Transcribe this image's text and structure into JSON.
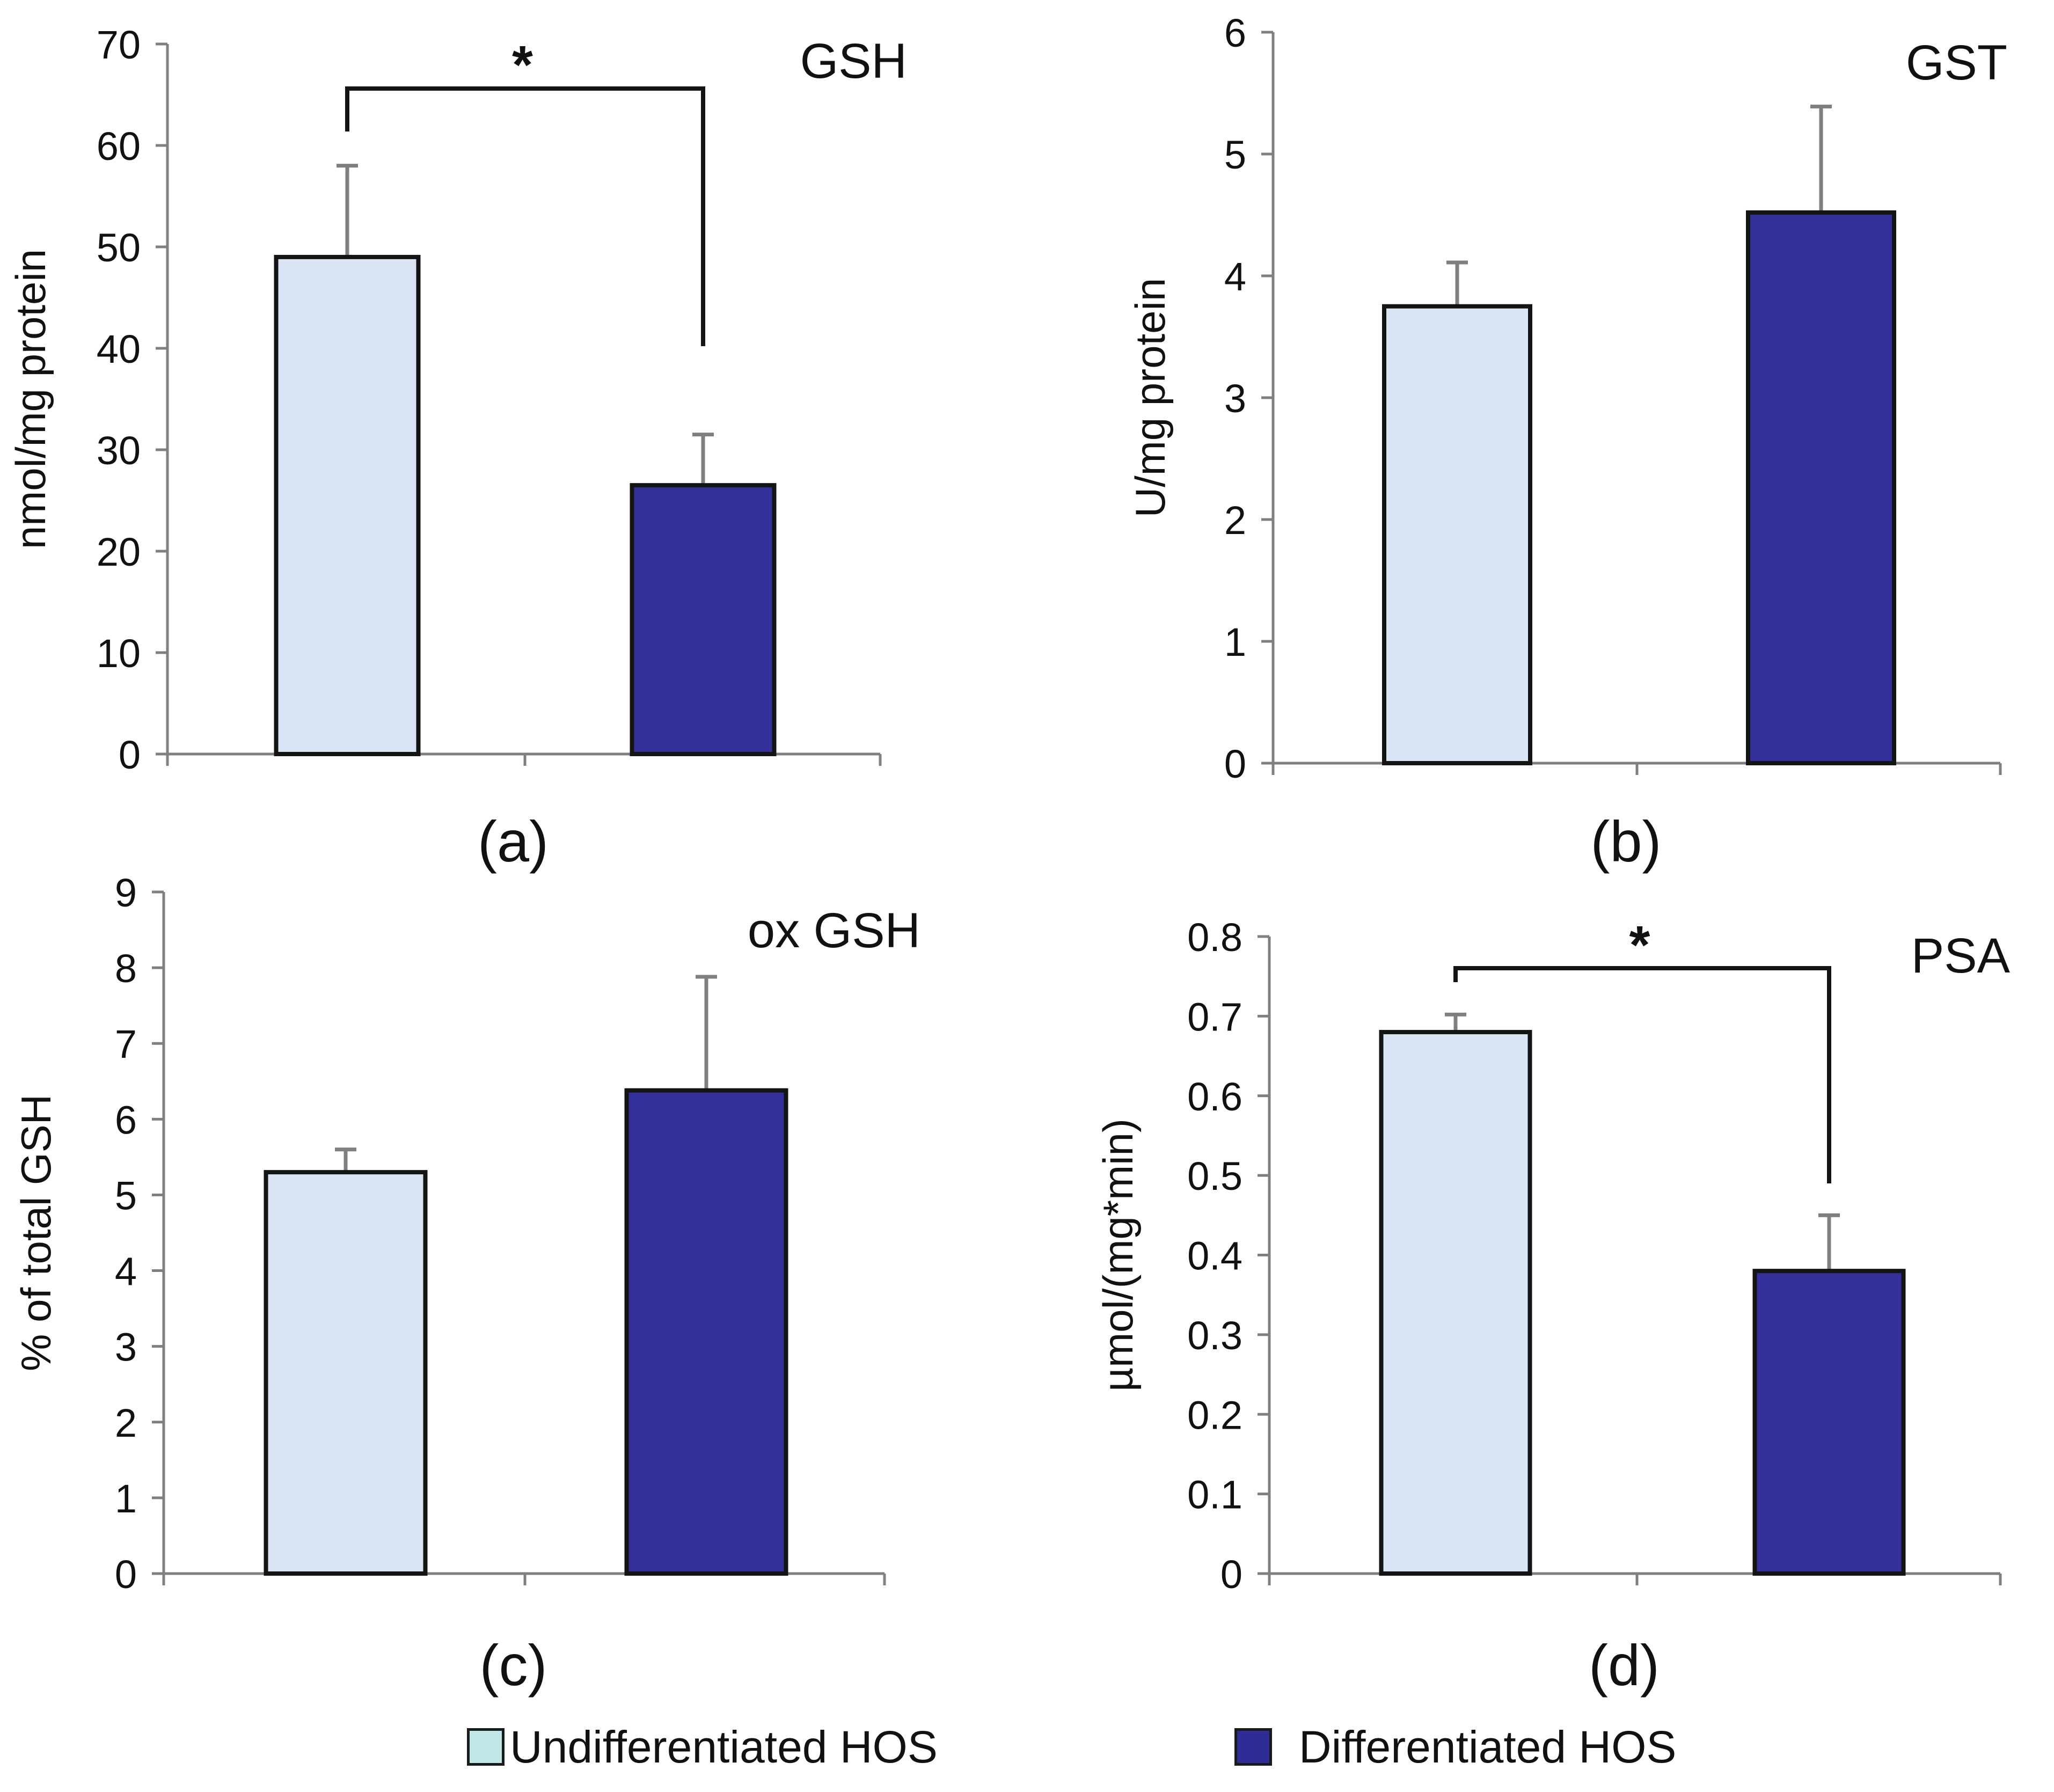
{
  "colors": {
    "undiff_bar": "#d9e4f4",
    "diff_bar": "#33309a",
    "legend_undiff": "#bfe7ea",
    "legend_diff": "#2e2d95",
    "axis": "#7f7f7f",
    "outline": "#141414"
  },
  "legend": {
    "items": [
      {
        "label": "Undifferentiated HOS",
        "color": "#bfe7ea"
      },
      {
        "label": "Differentiated HOS",
        "color": "#2e2d95"
      }
    ]
  },
  "chart_data": [
    {
      "id": "a",
      "type": "bar",
      "panel_label": "(a)",
      "title": "GSH",
      "ylabel": "nmol/mg protein",
      "ylim": [
        0,
        70
      ],
      "yticks": [
        "0",
        "10",
        "20",
        "30",
        "40",
        "50",
        "60",
        "70"
      ],
      "categories": [
        "Undifferentiated HOS",
        "Differentiated HOS"
      ],
      "values": [
        49,
        26.5
      ],
      "errors": [
        9,
        5
      ],
      "significance": {
        "marker": "*",
        "between": [
          0,
          1
        ]
      }
    },
    {
      "id": "b",
      "type": "bar",
      "panel_label": "(b)",
      "title": "GST",
      "ylabel": "U/mg protein",
      "ylim": [
        0,
        6
      ],
      "yticks": [
        "0",
        "1",
        "2",
        "3",
        "4",
        "5",
        "6"
      ],
      "categories": [
        "Undifferentiated HOS",
        "Differentiated HOS"
      ],
      "values": [
        3.75,
        4.52
      ],
      "errors": [
        0.36,
        0.87
      ]
    },
    {
      "id": "c",
      "type": "bar",
      "panel_label": "(c)",
      "title": "ox GSH",
      "ylabel": "% of total GSH",
      "ylim": [
        0,
        9
      ],
      "yticks": [
        "0",
        "1",
        "2",
        "3",
        "4",
        "5",
        "6",
        "7",
        "8",
        "9"
      ],
      "categories": [
        "Undifferentiated HOS",
        "Differentiated HOS"
      ],
      "values": [
        5.3,
        6.38
      ],
      "errors": [
        0.3,
        1.5
      ]
    },
    {
      "id": "d",
      "type": "bar",
      "panel_label": "(d)",
      "title": "PSA",
      "ylabel": "µmol/(mg*min)",
      "ylim": [
        0,
        0.8
      ],
      "yticks": [
        "0",
        "0.1",
        "0.2",
        "0.3",
        "0.4",
        "0.5",
        "0.6",
        "0.7",
        "0.8"
      ],
      "categories": [
        "Undifferentiated HOS",
        "Differentiated HOS"
      ],
      "values": [
        0.68,
        0.38
      ],
      "errors": [
        0.022,
        0.07
      ],
      "significance": {
        "marker": "*",
        "between": [
          0,
          1
        ]
      }
    }
  ]
}
